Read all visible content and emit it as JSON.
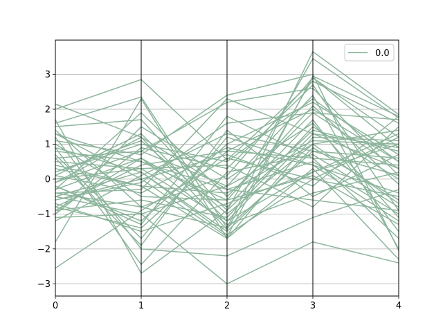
{
  "chart_data": {
    "type": "parallel_coordinates",
    "x": [
      0,
      1,
      2,
      3,
      4
    ],
    "xticks": [
      "0",
      "1",
      "2",
      "3",
      "4"
    ],
    "ylim": [
      -3.35,
      3.98
    ],
    "yticks": [
      "−3",
      "−2",
      "−1",
      "0",
      "1",
      "2",
      "3"
    ],
    "ytick_values": [
      -3,
      -2,
      -1,
      0,
      1,
      2,
      3
    ],
    "grid": "horizontal",
    "legend": {
      "label": "0.0",
      "position": "top-right"
    },
    "series_color": "#8db59c",
    "series": [
      {
        "class": "0.0",
        "values": [
          2.15,
          1.2,
          -1.45,
          2.9,
          0.9
        ]
      },
      {
        "class": "0.0",
        "values": [
          2.0,
          2.85,
          0.55,
          2.8,
          1.6
        ]
      },
      {
        "class": "0.0",
        "values": [
          1.6,
          2.35,
          -1.4,
          3.65,
          1.85
        ]
      },
      {
        "class": "0.0",
        "values": [
          1.5,
          1.7,
          -0.9,
          3.45,
          1.75
        ]
      },
      {
        "class": "0.0",
        "values": [
          1.3,
          0.0,
          -1.65,
          2.95,
          1.8
        ]
      },
      {
        "class": "0.0",
        "values": [
          1.1,
          0.7,
          2.4,
          3.0,
          -2.05
        ]
      },
      {
        "class": "0.0",
        "values": [
          0.8,
          0.5,
          -0.6,
          2.1,
          -0.15
        ]
      },
      {
        "class": "0.0",
        "values": [
          0.6,
          0.8,
          2.2,
          2.6,
          0.1
        ]
      },
      {
        "class": "0.0",
        "values": [
          0.4,
          -0.2,
          -0.4,
          1.0,
          1.4
        ]
      },
      {
        "class": "0.0",
        "values": [
          0.2,
          1.0,
          0.5,
          2.3,
          0.5
        ]
      },
      {
        "class": "0.0",
        "values": [
          0.1,
          -0.4,
          0.9,
          0.4,
          -0.4
        ]
      },
      {
        "class": "0.0",
        "values": [
          0.0,
          0.3,
          -1.2,
          1.3,
          0.9
        ]
      },
      {
        "class": "0.0",
        "values": [
          -0.1,
          1.2,
          -0.3,
          0.5,
          -1.0
        ]
      },
      {
        "class": "0.0",
        "values": [
          -0.2,
          -1.2,
          1.0,
          2.2,
          0.7
        ]
      },
      {
        "class": "0.0",
        "values": [
          -0.3,
          0.6,
          -0.8,
          1.7,
          -1.5
        ]
      },
      {
        "class": "0.0",
        "values": [
          -0.4,
          -0.8,
          0.1,
          2.9,
          1.2
        ]
      },
      {
        "class": "0.0",
        "values": [
          -0.5,
          0.2,
          -1.5,
          0.9,
          -0.6
        ]
      },
      {
        "class": "0.0",
        "values": [
          -0.6,
          -0.1,
          1.6,
          1.9,
          0.3
        ]
      },
      {
        "class": "0.0",
        "values": [
          -0.7,
          -1.5,
          -0.7,
          0.2,
          1.3
        ]
      },
      {
        "class": "0.0",
        "values": [
          -0.8,
          0.4,
          0.8,
          0.6,
          -1.7
        ]
      },
      {
        "class": "0.0",
        "values": [
          -0.9,
          -0.6,
          -1.1,
          1.5,
          0.0
        ]
      },
      {
        "class": "0.0",
        "values": [
          -1.0,
          0.9,
          0.3,
          2.7,
          -0.9
        ]
      },
      {
        "class": "0.0",
        "values": [
          -1.1,
          -1.0,
          -0.2,
          1.1,
          1.0
        ]
      },
      {
        "class": "0.0",
        "values": [
          -1.2,
          0.1,
          1.3,
          0.8,
          0.6
        ]
      },
      {
        "class": "0.0",
        "values": [
          -1.8,
          2.3,
          -1.7,
          1.2,
          1.1
        ]
      },
      {
        "class": "0.0",
        "values": [
          -2.55,
          -0.9,
          0.6,
          0.0,
          -0.5
        ]
      },
      {
        "class": "0.0",
        "values": [
          1.7,
          -2.7,
          -0.9,
          1.4,
          0.8
        ]
      },
      {
        "class": "0.0",
        "values": [
          0.9,
          -2.45,
          0.2,
          0.7,
          -0.8
        ]
      },
      {
        "class": "0.0",
        "values": [
          -0.5,
          -1.0,
          -3.0,
          -1.8,
          -2.4
        ]
      },
      {
        "class": "0.0",
        "values": [
          1.2,
          -2.0,
          -2.2,
          -1.1,
          -0.3
        ]
      },
      {
        "class": "0.0",
        "values": [
          0.3,
          -0.2,
          -1.7,
          0.3,
          -2.3
        ]
      },
      {
        "class": "0.0",
        "values": [
          -0.3,
          1.9,
          -0.5,
          1.9,
          1.7
        ]
      },
      {
        "class": "0.0",
        "values": [
          0.7,
          -1.7,
          1.2,
          0.4,
          -1.2
        ]
      },
      {
        "class": "0.0",
        "values": [
          -0.9,
          0.6,
          -1.3,
          -0.4,
          0.2
        ]
      },
      {
        "class": "0.0",
        "values": [
          0.5,
          0.3,
          0.4,
          -0.8,
          1.5
        ]
      },
      {
        "class": "0.0",
        "values": [
          1.0,
          -0.5,
          -0.6,
          0.1,
          -1.3
        ]
      },
      {
        "class": "0.0",
        "values": [
          -0.2,
          -1.3,
          1.8,
          0.6,
          0.4
        ]
      },
      {
        "class": "0.0",
        "values": [
          0.2,
          1.1,
          -1.0,
          1.0,
          -0.7
        ]
      },
      {
        "class": "0.0",
        "values": [
          -0.6,
          0.0,
          0.7,
          -0.2,
          1.8
        ]
      },
      {
        "class": "0.0",
        "values": [
          1.4,
          -0.8,
          -1.4,
          0.8,
          0.1
        ]
      },
      {
        "class": "0.0",
        "values": [
          -1.0,
          1.5,
          0.0,
          1.6,
          -1.1
        ]
      },
      {
        "class": "0.0",
        "values": [
          0.6,
          -1.9,
          1.4,
          -0.5,
          0.7
        ]
      },
      {
        "class": "0.0",
        "values": [
          -0.1,
          0.8,
          -0.2,
          2.4,
          -2.0
        ]
      },
      {
        "class": "0.0",
        "values": [
          0.9,
          0.2,
          -1.6,
          0.0,
          1.2
        ]
      },
      {
        "class": "0.0",
        "values": [
          -0.4,
          -0.3,
          2.3,
          1.3,
          0.3
        ]
      },
      {
        "class": "0.0",
        "values": [
          1.3,
          0.5,
          -0.3,
          -0.6,
          -0.9
        ]
      },
      {
        "class": "0.0",
        "values": [
          -0.8,
          -1.4,
          0.8,
          2.0,
          0.5
        ]
      },
      {
        "class": "0.0",
        "values": [
          0.1,
          1.3,
          -1.2,
          0.2,
          1.0
        ]
      }
    ]
  }
}
